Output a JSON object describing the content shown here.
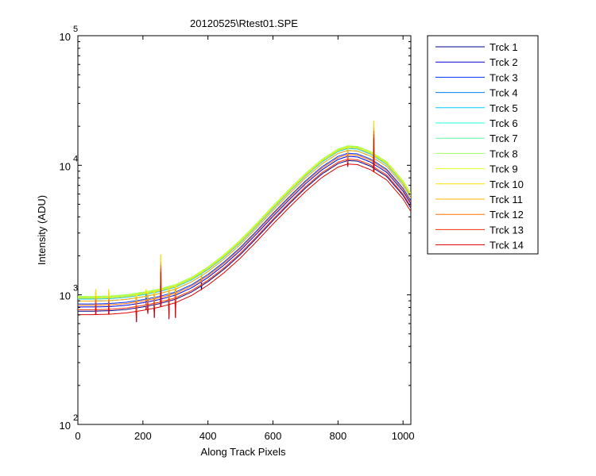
{
  "chart_data": {
    "type": "line",
    "title": "20120525\\Rtest01.SPE",
    "xlabel": "Along Track Pixels",
    "ylabel": "Intensity (ADU)",
    "xlim": [
      0,
      1024
    ],
    "ylim": [
      100,
      100000
    ],
    "yscale": "log",
    "grid": false,
    "legend_position": "outside-right",
    "x_ticks": [
      0,
      200,
      400,
      600,
      800,
      1000
    ],
    "x_tick_labels": [
      "0",
      "200",
      "400",
      "600",
      "800",
      "1000"
    ],
    "y_ticks": [
      100,
      1000,
      10000,
      100000
    ],
    "y_tick_labels": [
      {
        "base": "10",
        "exp": "2"
      },
      {
        "base": "10",
        "exp": "3"
      },
      {
        "base": "10",
        "exp": "4"
      },
      {
        "base": "10",
        "exp": "5"
      }
    ],
    "base_curve": {
      "x": [
        0,
        50,
        100,
        150,
        200,
        250,
        300,
        350,
        400,
        450,
        500,
        550,
        600,
        650,
        700,
        750,
        800,
        830,
        860,
        900,
        950,
        1000,
        1024
      ],
      "y": [
        640,
        640,
        645,
        660,
        690,
        730,
        790,
        900,
        1080,
        1350,
        1750,
        2350,
        3200,
        4300,
        5700,
        7300,
        8800,
        9300,
        9200,
        8400,
        7000,
        5000,
        4000
      ]
    },
    "spikes": [
      {
        "x": 55,
        "y": 1000
      },
      {
        "x": 95,
        "y": 1000
      },
      {
        "x": 180,
        "y": 760
      },
      {
        "x": 210,
        "y": 1000
      },
      {
        "x": 215,
        "y": 880
      },
      {
        "x": 235,
        "y": 820
      },
      {
        "x": 255,
        "y": 1850
      },
      {
        "x": 280,
        "y": 800
      },
      {
        "x": 300,
        "y": 820
      },
      {
        "x": 380,
        "y": 1350
      },
      {
        "x": 830,
        "y": 12000
      },
      {
        "x": 910,
        "y": 20000
      }
    ],
    "series": [
      {
        "name": "Trck 1",
        "color": "#00008f",
        "scale": 1.17
      },
      {
        "name": "Trck 2",
        "color": "#0000df",
        "scale": 1.26
      },
      {
        "name": "Trck 3",
        "color": "#0030ff",
        "scale": 1.33
      },
      {
        "name": "Trck 4",
        "color": "#0080ff",
        "scale": 1.4
      },
      {
        "name": "Trck 5",
        "color": "#00cfff",
        "scale": 1.45
      },
      {
        "name": "Trck 6",
        "color": "#20ffdf",
        "scale": 1.49
      },
      {
        "name": "Trck 7",
        "color": "#60ff9f",
        "scale": 1.51
      },
      {
        "name": "Trck 8",
        "color": "#9fff60",
        "scale": 1.52
      },
      {
        "name": "Trck 9",
        "color": "#dfff20",
        "scale": 1.5
      },
      {
        "name": "Trck 10",
        "color": "#ffe000",
        "scale": 1.47
      },
      {
        "name": "Trck 11",
        "color": "#ffb000",
        "scale": 1.4
      },
      {
        "name": "Trck 12",
        "color": "#ff7000",
        "scale": 1.3
      },
      {
        "name": "Trck 13",
        "color": "#ff3000",
        "scale": 1.2
      },
      {
        "name": "Trck 14",
        "color": "#df0000",
        "scale": 1.1
      }
    ]
  }
}
